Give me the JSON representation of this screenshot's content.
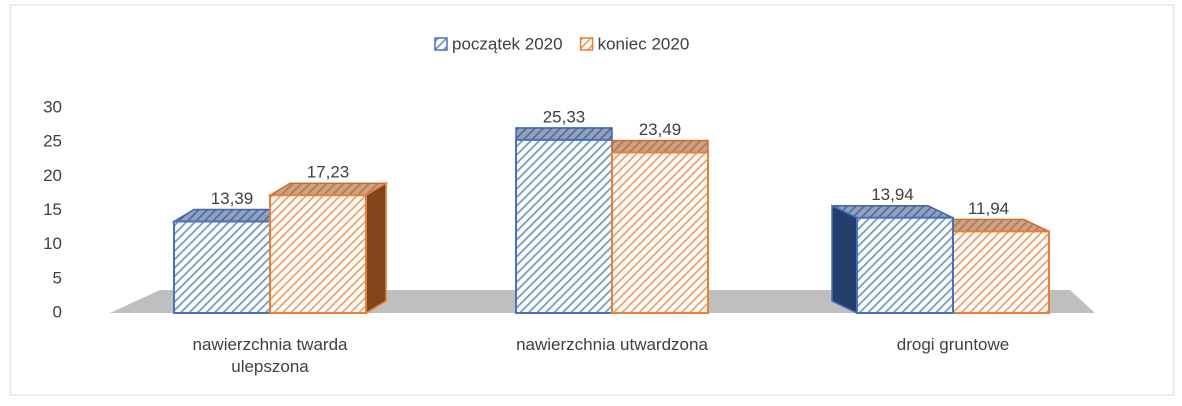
{
  "chart_data": {
    "type": "bar3d",
    "categories": [
      "nawierzchnia twarda ulepszona",
      "nawierzchnia utwardzona",
      "drogi gruntowe"
    ],
    "series": [
      {
        "name": "początek 2020",
        "color": "#4472c4",
        "values": [
          13.39,
          25.33,
          13.94
        ],
        "value_labels": [
          "13,39",
          "25,33",
          "13,94"
        ]
      },
      {
        "name": "koniec 2020",
        "color": "#ed7d31",
        "values": [
          17.23,
          23.49,
          11.94
        ],
        "value_labels": [
          "17,23",
          "23,49",
          "11,94"
        ]
      }
    ],
    "ylim": [
      0,
      30
    ],
    "yticks": [
      0,
      5,
      10,
      15,
      20,
      25,
      30
    ],
    "legend": "top",
    "grid": false
  }
}
